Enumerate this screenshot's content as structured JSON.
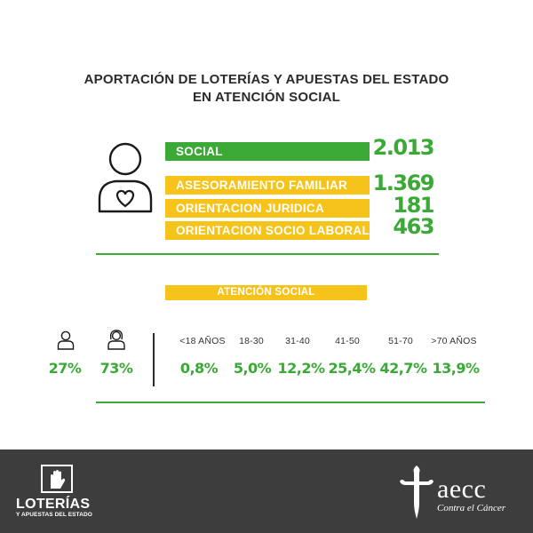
{
  "title": {
    "line1": "APORTACIÓN DE LOTERÍAS Y APUESTAS DEL ESTADO",
    "line2": "EN ATENCIÓN SOCIAL"
  },
  "services": [
    {
      "label": "SOCIAL",
      "value": "2.013",
      "color": "#3aa935"
    },
    {
      "label": "ASESORAMIENTO FAMILIAR",
      "value": "1.369",
      "color": "#f6c31a"
    },
    {
      "label": "ORIENTACION JURIDICA",
      "value": "181",
      "color": "#f6c31a"
    },
    {
      "label": "ORIENTACION SOCIO LABORAL",
      "value": "463",
      "color": "#f6c31a"
    }
  ],
  "section": {
    "label": "ATENCIÓN SOCIAL"
  },
  "gender": [
    {
      "icon": "male-icon",
      "value": "27%"
    },
    {
      "icon": "female-icon",
      "value": "73%"
    }
  ],
  "ages": [
    {
      "label": "<18 AÑOS",
      "value": "0,8%"
    },
    {
      "label": "18-30",
      "value": "5,0%"
    },
    {
      "label": "31-40",
      "value": "12,2%"
    },
    {
      "label": "41-50",
      "value": "25,4%"
    },
    {
      "label": "51-70",
      "value": "42,7%"
    },
    {
      "label": ">70 AÑOS",
      "value": "13,9%"
    }
  ],
  "footer": {
    "left_logo_line1": "LOTERÍAS",
    "left_logo_line2": "Y APUESTAS DEL ESTADO",
    "right_logo_main": "aecc",
    "right_logo_sub": "Contra el Cáncer"
  },
  "colors": {
    "green": "#3aa935",
    "yellow": "#f6c31a",
    "footer": "#3d3d3d"
  }
}
